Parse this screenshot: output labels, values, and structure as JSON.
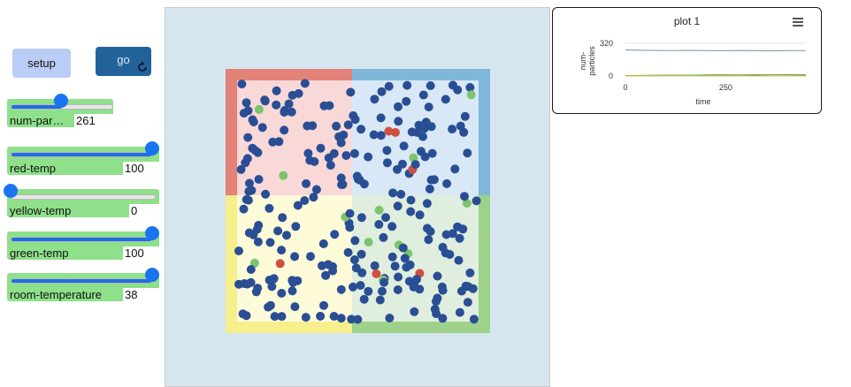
{
  "buttons": {
    "setup_label": "setup",
    "go_label": "go"
  },
  "sliders": [
    {
      "label": "num-par…",
      "value": "261",
      "fraction": 0.49
    },
    {
      "label": "red-temp",
      "value": "100",
      "fraction": 1.0
    },
    {
      "label": "yellow-temp",
      "value": "0",
      "fraction": 0.0
    },
    {
      "label": "green-temp",
      "value": "100",
      "fraction": 1.0
    },
    {
      "label": "room-temperature",
      "value": "38",
      "fraction": 1.0
    }
  ],
  "world": {
    "colors": {
      "red_wall": "#e28278",
      "blue_wall": "#7eb7d9",
      "yellow_wall": "#f6ef8c",
      "green_wall": "#9ed28a",
      "red_room": "#f8d9d8",
      "blue_room": "#d8e8f6",
      "yellow_room": "#fdfbd8",
      "green_room": "#dfeede",
      "particle": "#2a4e94",
      "particle_red": "#cf4f43",
      "particle_green": "#7cc46c"
    }
  },
  "plot": {
    "title": "plot 1",
    "menu_icon": "hamburger-menu-icon",
    "chart_data": {
      "type": "line",
      "title": "plot 1",
      "xlabel": "time",
      "ylabel": "num-particles",
      "xlim": [
        0,
        450
      ],
      "ylim": [
        0,
        320
      ],
      "x_ticks": [
        "0",
        "250"
      ],
      "y_ticks": [
        "320",
        "0"
      ],
      "grid": true,
      "series": [
        {
          "color": "#7a8fa8",
          "x": [
            0,
            40,
            80,
            120,
            160,
            200,
            240,
            280,
            320,
            360,
            400,
            450
          ],
          "y": [
            255,
            252,
            250,
            248,
            251,
            249,
            247,
            250,
            248,
            246,
            249,
            248
          ]
        },
        {
          "color": "#d9534f",
          "x": [
            0,
            40,
            80,
            120,
            160,
            200,
            240,
            280,
            320,
            360,
            400,
            450
          ],
          "y": [
            4,
            5,
            6,
            8,
            7,
            9,
            10,
            8,
            9,
            11,
            10,
            9
          ]
        },
        {
          "color": "#5cb85c",
          "x": [
            0,
            40,
            80,
            120,
            160,
            200,
            240,
            280,
            320,
            360,
            400,
            450
          ],
          "y": [
            2,
            4,
            6,
            7,
            8,
            10,
            12,
            11,
            13,
            12,
            14,
            13
          ]
        },
        {
          "color": "#e3c84a",
          "x": [
            0,
            40,
            80,
            120,
            160,
            200,
            240,
            280,
            320,
            360,
            400,
            450
          ],
          "y": [
            0,
            0,
            1,
            0,
            1,
            0,
            0,
            1,
            0,
            0,
            1,
            0
          ]
        }
      ]
    }
  }
}
